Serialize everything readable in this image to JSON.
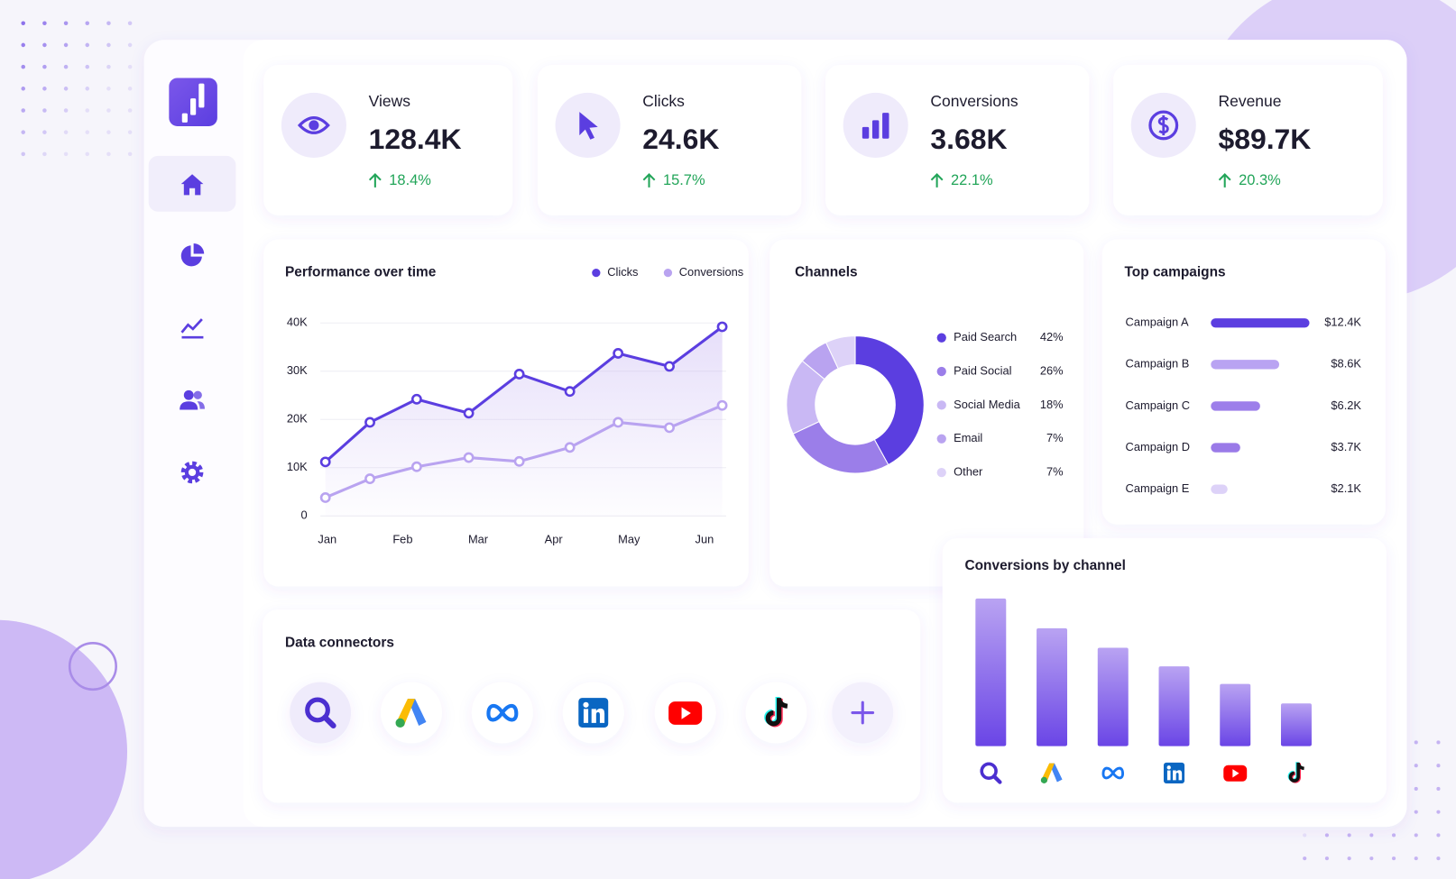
{
  "kpis": [
    {
      "label": "Views",
      "value": "128.4K",
      "change": "18.4%"
    },
    {
      "label": "Clicks",
      "value": "24.6K",
      "change": "15.7%"
    },
    {
      "label": "Conversions",
      "value": "3.68K",
      "change": "22.1%"
    },
    {
      "label": "Revenue",
      "value": "$89.7K",
      "change": "20.3%"
    }
  ],
  "connectors": {
    "title": "Data connectors"
  },
  "chart_data": [
    {
      "type": "line",
      "title": "Performance over time",
      "x": [
        0,
        0.59,
        1.21,
        1.9,
        2.57,
        3.24,
        3.88,
        4.56,
        5.26
      ],
      "xlim": [
        -0.03,
        5.3
      ],
      "xticks": [
        {
          "value": 0,
          "label": "Jan"
        },
        {
          "value": 1,
          "label": "Feb"
        },
        {
          "value": 2,
          "label": "Mar"
        },
        {
          "value": 3,
          "label": "Apr"
        },
        {
          "value": 4,
          "label": "May"
        },
        {
          "value": 5,
          "label": "Jun"
        }
      ],
      "ylim": [
        0,
        40000
      ],
      "yticks": [
        0,
        {
          "value": 10000,
          "label": "10K"
        },
        {
          "value": 20000,
          "label": "20K"
        },
        {
          "value": 30000,
          "label": "30K"
        },
        {
          "value": 40000,
          "label": "40K"
        }
      ],
      "grid": true,
      "series": [
        {
          "name": "Clicks",
          "color": "#5b3ee0",
          "values": [
            11200,
            19400,
            24200,
            21300,
            29400,
            25800,
            33700,
            31000,
            39200
          ]
        },
        {
          "name": "Conversions",
          "color": "#b9a3f0",
          "values": [
            3800,
            7700,
            10200,
            12100,
            11300,
            14200,
            19400,
            18300,
            22900
          ]
        }
      ]
    },
    {
      "type": "pie",
      "title": "Channels",
      "categories": [
        "Paid Search",
        "Paid Social",
        "Social Media",
        "Email",
        "Other"
      ],
      "values": [
        42,
        26,
        18,
        7,
        7
      ],
      "value_labels": [
        "42%",
        "26%",
        "18%",
        "7%",
        "7%"
      ],
      "colors": [
        "#5b3ee0",
        "#9b7ee9",
        "#c9b8f4",
        "#b9a3f0",
        "#ddd2f8"
      ]
    },
    {
      "type": "bar",
      "title": "Top campaigns",
      "categories": [
        "Campaign A",
        "Campaign B",
        "Campaign C",
        "Campaign D",
        "Campaign E"
      ],
      "values": [
        12400,
        8600,
        6200,
        3700,
        2100
      ],
      "value_labels": [
        "$12.4K",
        "$8.6K",
        "$6.2K",
        "$3.7K",
        "$2.1K"
      ],
      "colors": [
        "#5b3ee0",
        "#b9a3f2",
        "#9d7fea",
        "#9a7ae8",
        "#ddd2f8"
      ],
      "xlim": [
        0,
        12500
      ]
    },
    {
      "type": "bar",
      "title": "Conversions by channel",
      "values": [
        159,
        127,
        106,
        86,
        67,
        46
      ],
      "ylim": [
        0,
        160
      ],
      "color": "#6a45e6"
    }
  ]
}
